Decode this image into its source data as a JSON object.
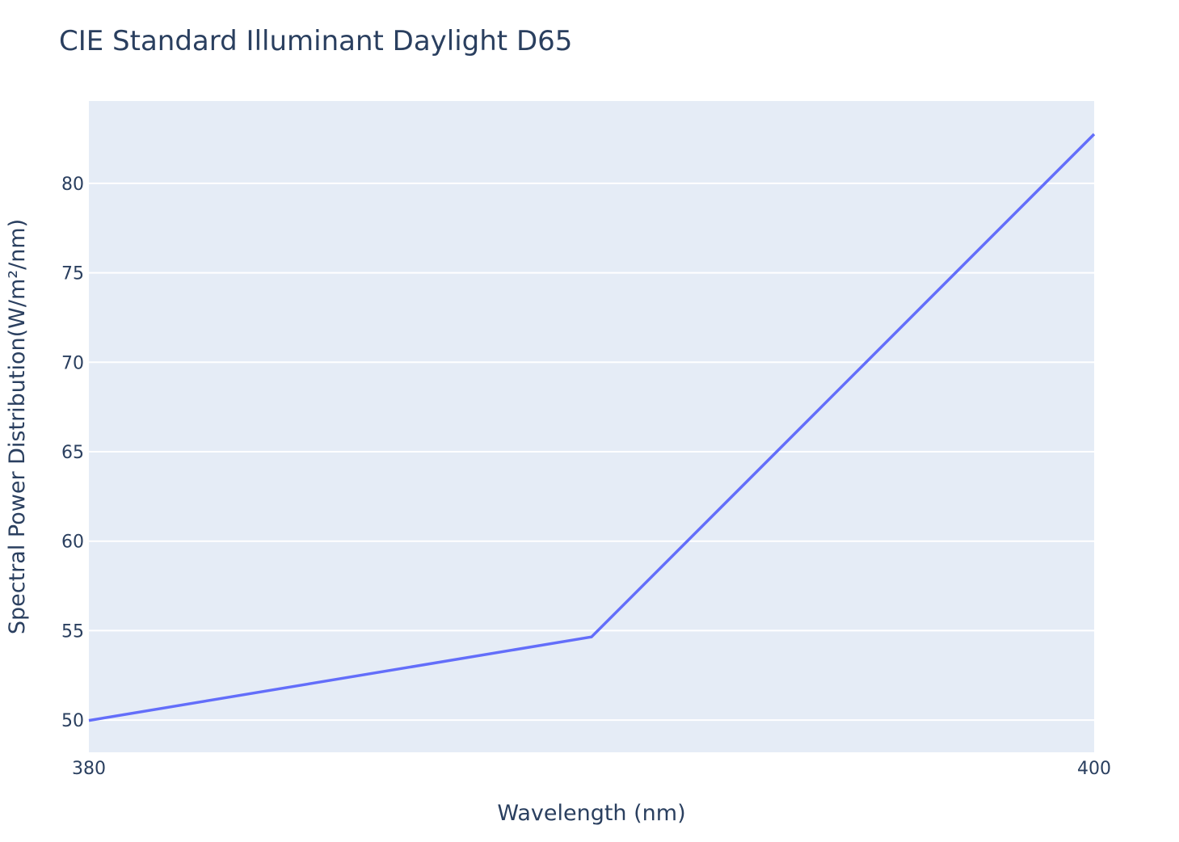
{
  "chart_data": {
    "type": "line",
    "title": "CIE Standard Illuminant Daylight D65",
    "xlabel": "Wavelength (nm)",
    "ylabel": "Spectral Power Distribution(W/m²/nm)",
    "x": [
      380,
      390,
      400
    ],
    "series": [
      {
        "values": [
          49.98,
          54.65,
          82.75
        ]
      }
    ],
    "xlim": [
      380,
      400
    ],
    "ylim": [
      48.2,
      84.6
    ],
    "x_ticks": [
      380,
      400
    ],
    "y_ticks": [
      50,
      55,
      60,
      65,
      70,
      75,
      80
    ],
    "grid": true,
    "colors": {
      "line": "#636efa",
      "plot_background": "#e5ecf6",
      "grid": "#ffffff",
      "text": "#2a3f5f"
    }
  }
}
